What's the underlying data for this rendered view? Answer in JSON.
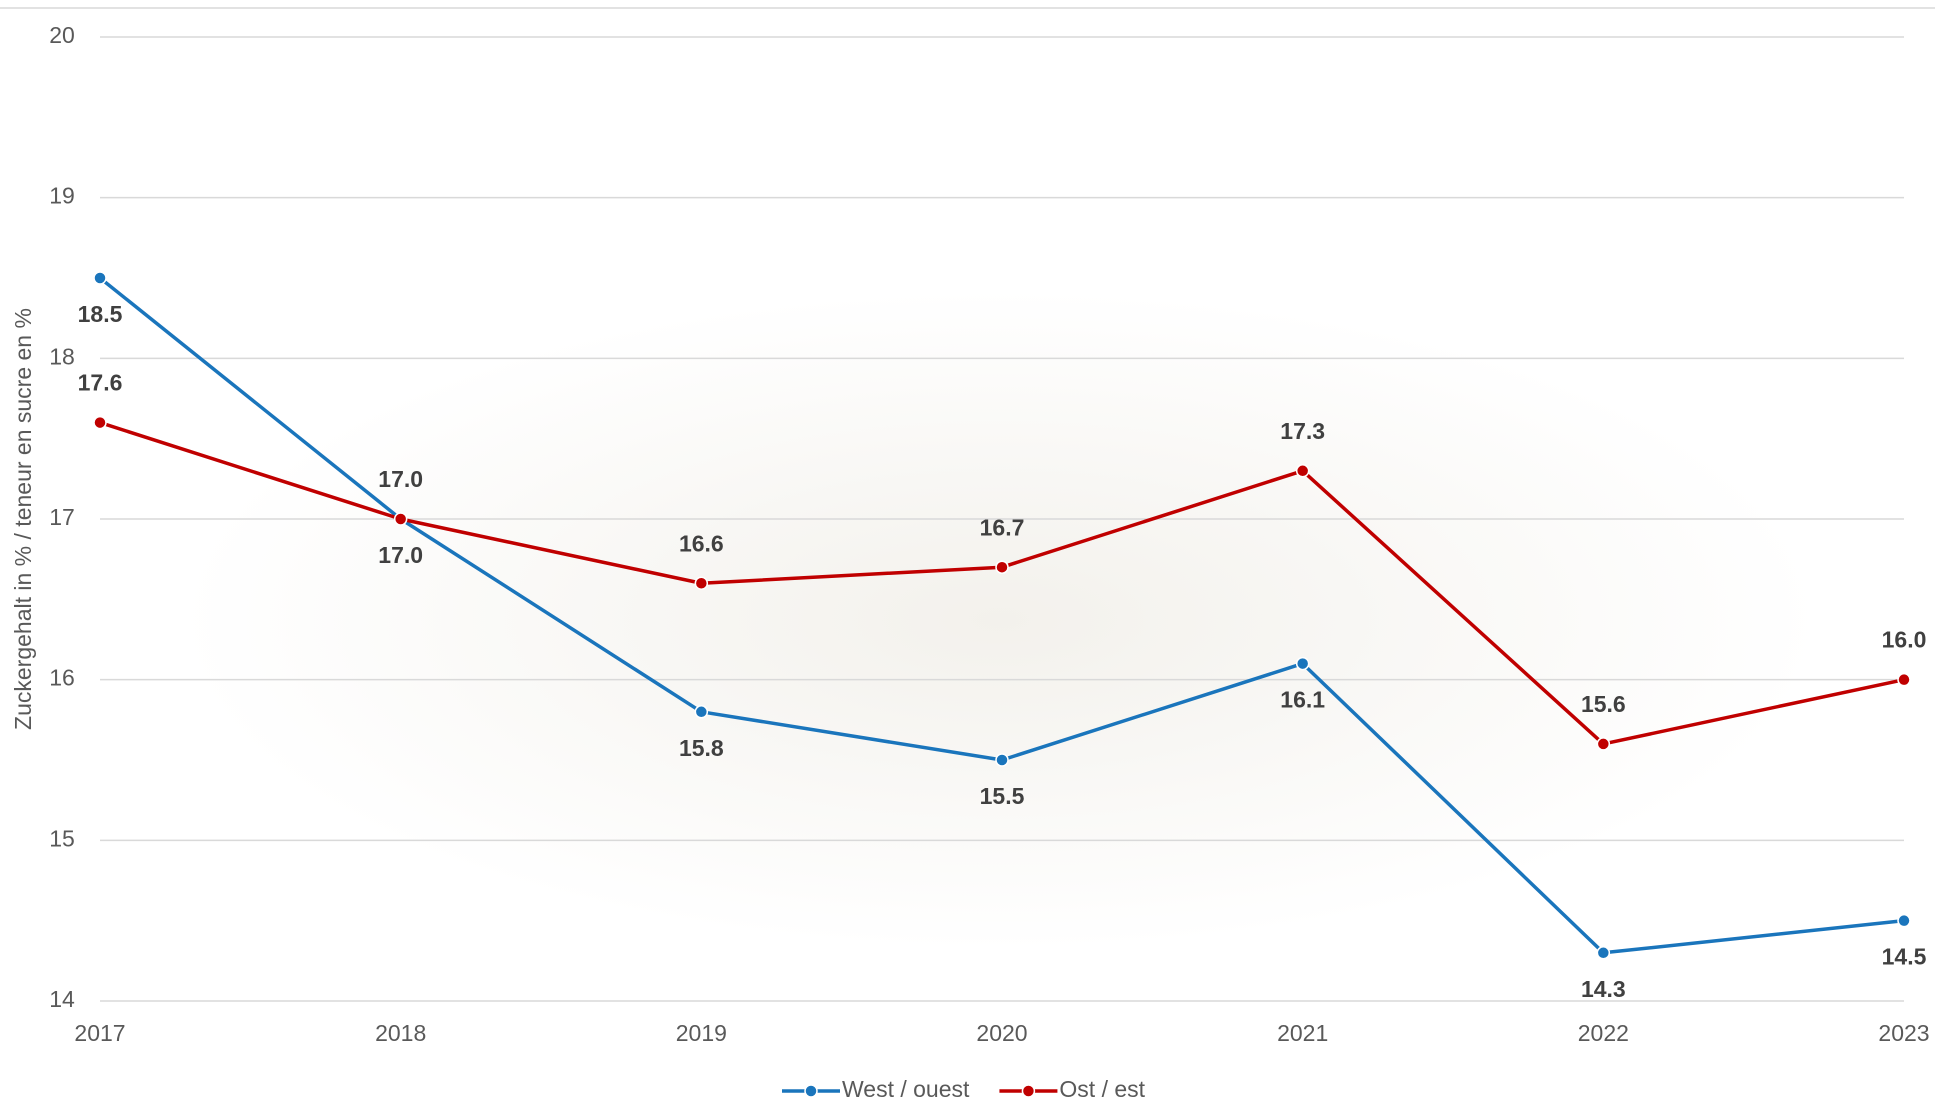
{
  "chart_data": {
    "type": "line",
    "y_label": "Zuckergehalt in % / teneur en sucre en %",
    "categories": [
      "2017",
      "2018",
      "2019",
      "2020",
      "2021",
      "2022",
      "2023"
    ],
    "series": [
      {
        "name": "West / ouest",
        "color": "#1a75bc",
        "values": [
          18.5,
          17.0,
          15.8,
          15.5,
          16.1,
          14.3,
          14.5
        ],
        "value_labels": [
          "18.5",
          "17.0",
          "15.8",
          "15.5",
          "16.1",
          "14.3",
          "14.5"
        ]
      },
      {
        "name": "Ost / est",
        "color": "#c00000",
        "values": [
          17.6,
          17.0,
          16.6,
          16.7,
          17.3,
          15.6,
          16.0
        ],
        "value_labels": [
          "17.6",
          "17.0",
          "16.6",
          "16.7",
          "17.3",
          "15.6",
          "16.0"
        ]
      }
    ],
    "ylim": [
      14,
      20
    ],
    "yticks": [
      14,
      15,
      16,
      17,
      18,
      19,
      20
    ],
    "grid": true,
    "legend": "bottom"
  }
}
